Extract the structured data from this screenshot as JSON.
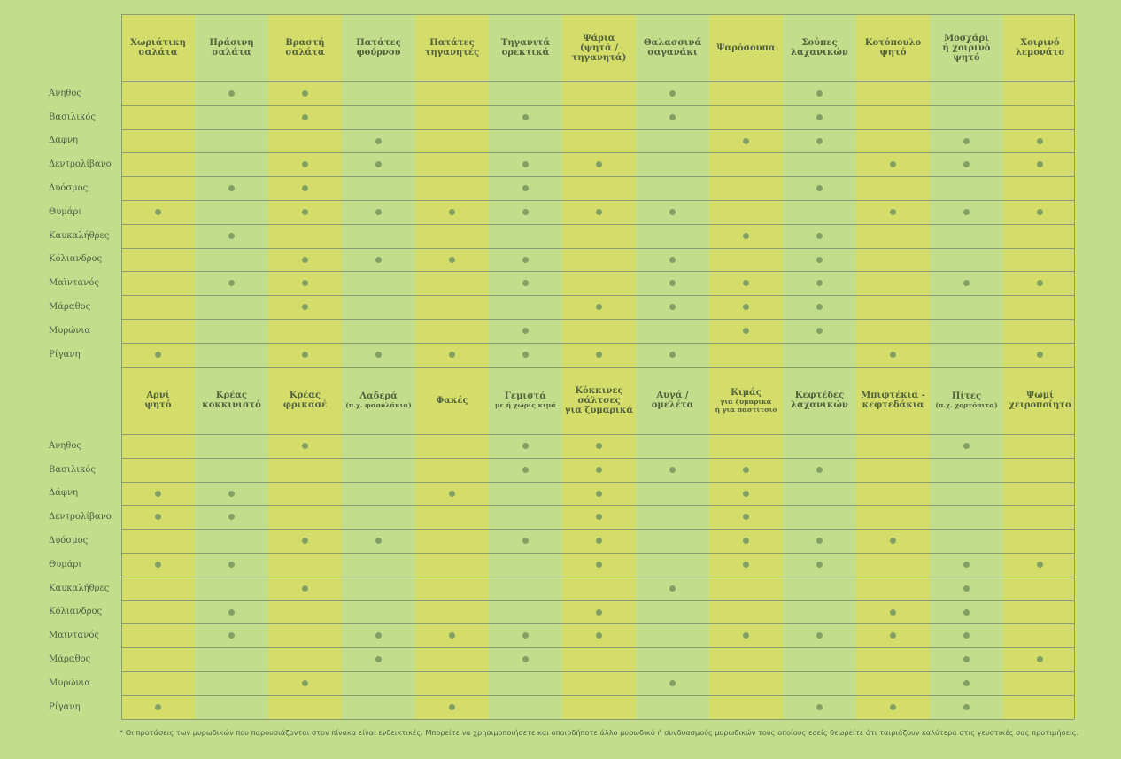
{
  "colors": {
    "background": "#c2de8c",
    "yellow_col": "#d4dd6a",
    "green_col": "#c2de8c",
    "dot": "#82a063",
    "line": "#8c9c72"
  },
  "table1": {
    "columns": [
      {
        "title": "Χωριάτικη\nσαλάτα"
      },
      {
        "title": "Πράσινη\nσαλάτα"
      },
      {
        "title": "Βραστή\nσαλάτα"
      },
      {
        "title": "Πατάτες\nφούρνου"
      },
      {
        "title": "Πατάτες\nτηγανητές"
      },
      {
        "title": "Τηγανιτά\nορεκτικά"
      },
      {
        "title": "Ψάρια\n(ψητά /\nτηγανητά)"
      },
      {
        "title": "Θαλασσινά\nσαγανάκι"
      },
      {
        "title": "Ψαρόσουπα"
      },
      {
        "title": "Σούπες\nλαχανικών"
      },
      {
        "title": "Κοτόπουλο\nψητό"
      },
      {
        "title": "Μοσχάρι\nή χοιρινό ψητό"
      },
      {
        "title": "Χοιρινό\nλεμονάτο"
      }
    ],
    "rows": [
      {
        "herb": "Άνηθος",
        "marks": [
          0,
          1,
          1,
          0,
          0,
          0,
          0,
          1,
          0,
          1,
          0,
          0,
          0
        ]
      },
      {
        "herb": "Βασιλικός",
        "marks": [
          0,
          0,
          1,
          0,
          0,
          1,
          0,
          1,
          0,
          1,
          0,
          0,
          0
        ]
      },
      {
        "herb": "Δάφνη",
        "marks": [
          0,
          0,
          0,
          1,
          0,
          0,
          0,
          0,
          1,
          1,
          0,
          1,
          1
        ]
      },
      {
        "herb": "Δεντρολίβανο",
        "marks": [
          0,
          0,
          1,
          1,
          0,
          1,
          1,
          0,
          0,
          0,
          1,
          1,
          1
        ]
      },
      {
        "herb": "Δυόσμος",
        "marks": [
          0,
          1,
          1,
          0,
          0,
          1,
          0,
          0,
          0,
          1,
          0,
          0,
          0
        ]
      },
      {
        "herb": "Θυμάρι",
        "marks": [
          1,
          0,
          1,
          1,
          1,
          1,
          1,
          1,
          0,
          0,
          1,
          1,
          1
        ]
      },
      {
        "herb": "Καυκαλήθρες",
        "marks": [
          0,
          1,
          0,
          0,
          0,
          0,
          0,
          0,
          1,
          1,
          0,
          0,
          0
        ]
      },
      {
        "herb": "Κόλιανδρος",
        "marks": [
          0,
          0,
          1,
          1,
          1,
          1,
          0,
          1,
          0,
          1,
          0,
          0,
          0
        ]
      },
      {
        "herb": "Μαϊντανός",
        "marks": [
          0,
          1,
          1,
          0,
          0,
          1,
          0,
          1,
          1,
          1,
          0,
          1,
          1
        ]
      },
      {
        "herb": "Μάραθος",
        "marks": [
          0,
          0,
          1,
          0,
          0,
          0,
          1,
          1,
          1,
          1,
          0,
          0,
          0
        ]
      },
      {
        "herb": "Μυρώνια",
        "marks": [
          0,
          0,
          0,
          0,
          0,
          1,
          0,
          0,
          1,
          1,
          0,
          0,
          0
        ]
      },
      {
        "herb": "Ρίγανη",
        "marks": [
          1,
          0,
          1,
          1,
          1,
          1,
          1,
          1,
          0,
          0,
          1,
          0,
          1
        ]
      }
    ]
  },
  "table2": {
    "columns": [
      {
        "title": "Αρνί\nψητό"
      },
      {
        "title": "Κρέας\nκοκκινιστό"
      },
      {
        "title": "Κρέας\nφρικασέ"
      },
      {
        "title": "Λαδερά",
        "sub": "(π.χ. φασολάκια)"
      },
      {
        "title": "Φακές"
      },
      {
        "title": "Γεμιστά",
        "sub": "με ή χωρίς κιμά"
      },
      {
        "title": "Κόκκινες\nσάλτσες\nγια ζυμαρικά"
      },
      {
        "title": "Αυγά /\nομελέτα"
      },
      {
        "title": "Κιμάς",
        "sub": "για ζυμαρικά\nή για παστίτσιο"
      },
      {
        "title": "Κεφτέδες\nλαχανικών"
      },
      {
        "title": "Μπιφτέκια -\nκεφτεδάκια"
      },
      {
        "title": "Πίτες",
        "sub": "(π.χ. χορτόπιτα)"
      },
      {
        "title": "Ψωμί\nχειροποίητο"
      }
    ],
    "rows": [
      {
        "herb": "Άνηθος",
        "marks": [
          0,
          0,
          1,
          0,
          0,
          1,
          1,
          0,
          0,
          0,
          0,
          1,
          0
        ]
      },
      {
        "herb": "Βασιλικός",
        "marks": [
          0,
          0,
          0,
          0,
          0,
          1,
          1,
          1,
          1,
          1,
          0,
          0,
          0
        ]
      },
      {
        "herb": "Δάφνη",
        "marks": [
          1,
          1,
          0,
          0,
          1,
          0,
          1,
          0,
          1,
          0,
          0,
          0,
          0
        ]
      },
      {
        "herb": "Δεντρολίβανο",
        "marks": [
          1,
          1,
          0,
          0,
          0,
          0,
          1,
          0,
          1,
          0,
          0,
          0,
          0
        ]
      },
      {
        "herb": "Δυόσμος",
        "marks": [
          0,
          0,
          1,
          1,
          0,
          1,
          1,
          0,
          1,
          1,
          1,
          0,
          0
        ]
      },
      {
        "herb": "Θυμάρι",
        "marks": [
          1,
          1,
          0,
          0,
          0,
          0,
          1,
          0,
          1,
          1,
          0,
          1,
          1
        ]
      },
      {
        "herb": "Καυκαλήθρες",
        "marks": [
          0,
          0,
          1,
          0,
          0,
          0,
          0,
          1,
          0,
          0,
          0,
          1,
          0
        ]
      },
      {
        "herb": "Κόλιανδρος",
        "marks": [
          0,
          1,
          0,
          0,
          0,
          0,
          1,
          0,
          0,
          0,
          1,
          1,
          0
        ]
      },
      {
        "herb": "Μαϊντανός",
        "marks": [
          0,
          1,
          0,
          1,
          1,
          1,
          1,
          0,
          1,
          1,
          1,
          1,
          0
        ]
      },
      {
        "herb": "Μάραθος",
        "marks": [
          0,
          0,
          0,
          1,
          0,
          1,
          0,
          0,
          0,
          0,
          0,
          1,
          1
        ]
      },
      {
        "herb": "Μυρώνια",
        "marks": [
          0,
          0,
          1,
          0,
          0,
          0,
          0,
          1,
          0,
          0,
          0,
          1,
          0
        ]
      },
      {
        "herb": "Ρίγανη",
        "marks": [
          1,
          0,
          0,
          0,
          1,
          0,
          0,
          0,
          0,
          1,
          1,
          1,
          0
        ]
      }
    ]
  },
  "footnote": "* Οι προτάσεις των μυρωδικών που παρουσιάζονται στον πίνακα είναι ενδεικτικές. Μπορείτε να χρησιμοποιήσετε και οποιοδήποτε άλλο μυρωδικό ή συνδυασμούς μυρωδικών τους οποίους εσείς θεωρείτε ότι ταιριάζουν καλύτερα στις γευστικές σας προτιμήσεις."
}
